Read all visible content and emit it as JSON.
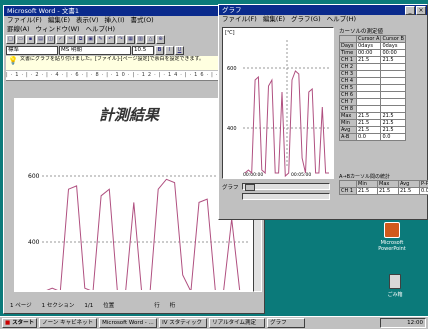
{
  "word": {
    "title": "Microsoft Word - 文書1",
    "menus": [
      "ファイル(F)",
      "編集(E)",
      "表示(V)",
      "挿入(I)",
      "書式(O)",
      "罫線(A)",
      "ウィンドウ(W)",
      "ヘルプ(H)"
    ],
    "style_combo": "標準",
    "font_combo": "MS 明朝",
    "size_combo": "10.5",
    "hint": "文書にグラフを貼り付けました。[ファイル]-[ページ設定]で余白を設定できます。",
    "document_title": "計測結果",
    "status": {
      "page": "1 ページ",
      "section": "1 セクション",
      "pages": "1/1",
      "pos": "位置",
      "line": "行",
      "col": "桁"
    },
    "chart_ticks": [
      "600",
      "400"
    ]
  },
  "graph": {
    "title": "グラフ",
    "menus": [
      "ファイル(F)",
      "編集(E)",
      "グラフ(G)",
      "ヘルプ(H)"
    ],
    "unit": "[℃]",
    "y_ticks": [
      "600",
      "400"
    ],
    "x_ticks": [
      "00:00:00",
      "00:05:00"
    ],
    "graph_label": "グラフ",
    "table_title": "カーソルの測定値",
    "table_cols": [
      "",
      "Cursor A",
      "Cursor B"
    ],
    "table_rows": [
      [
        "Days",
        "0days",
        "0days"
      ],
      [
        "Time",
        "00:00",
        "00:00"
      ],
      [
        "CH 1",
        "21.5",
        "21.5"
      ],
      [
        "CH 2",
        "",
        ""
      ],
      [
        "CH 3",
        "",
        ""
      ],
      [
        "CH 4",
        "",
        ""
      ],
      [
        "CH 5",
        "",
        ""
      ],
      [
        "CH 6",
        "",
        ""
      ],
      [
        "CH 7",
        "",
        ""
      ],
      [
        "CH 8",
        "",
        ""
      ],
      [
        "Max",
        "21.5",
        "21.5"
      ],
      [
        "Min",
        "21.5",
        "21.5"
      ],
      [
        "Avg",
        "21.5",
        "21.5"
      ],
      [
        "A-B",
        "0.0",
        "0.0"
      ]
    ],
    "stats_title": "A→Bカーソル間の統計",
    "stats_cols": [
      "",
      "Min",
      "Max",
      "Avg",
      "P-P"
    ],
    "stats_rows": [
      [
        "CH 1",
        "21.5",
        "21.5",
        "21.5",
        "0.0"
      ]
    ]
  },
  "desktop": {
    "icon1": "Microsoft PowerPoint",
    "icon2": "ごみ箱"
  },
  "taskbar": {
    "start": "スタート",
    "tasks": [
      "ノーン キャビネット",
      "Microsoft Word - ...",
      "IV スタティック",
      "リアルタイム測定",
      "グラフ"
    ],
    "clock": "12:00"
  },
  "chart_data": {
    "type": "line",
    "ylabel": "[℃]",
    "y_ticks": [
      600,
      400
    ],
    "x_ticks": [
      "00:00:00",
      "00:05:00"
    ],
    "series": [
      {
        "values": [
          250,
          260,
          250,
          560,
          570,
          260,
          250,
          540,
          560,
          250,
          250,
          520,
          240,
          250,
          560,
          590,
          580,
          300,
          250,
          520,
          530,
          250,
          250,
          470,
          250,
          250
        ]
      }
    ]
  }
}
